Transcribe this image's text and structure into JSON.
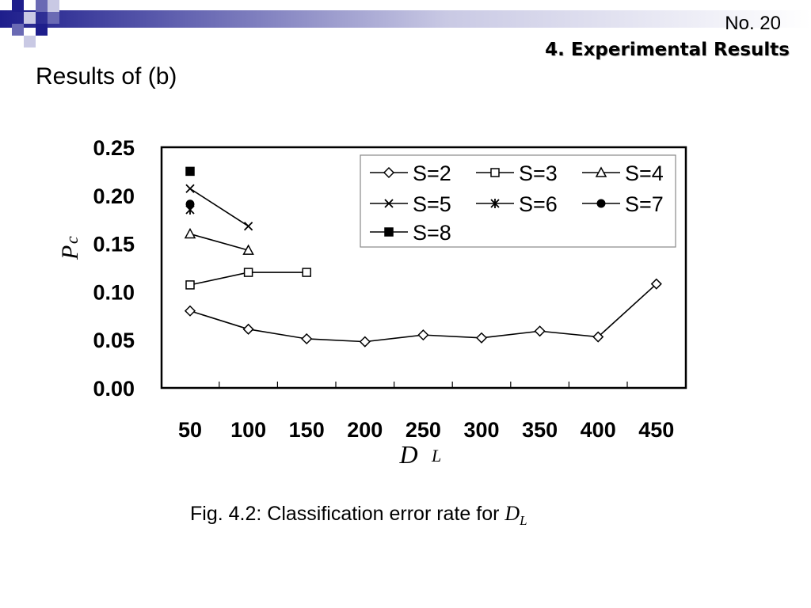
{
  "slide": {
    "number": "No. 20",
    "section": "4. Experimental Results",
    "title": "Results of (b)",
    "caption_prefix": "Fig. 4.2: Classification error rate for ",
    "caption_var": "D",
    "caption_sub": "L"
  },
  "colors": {
    "deco_dark": "#1e1e8c",
    "deco_mid": "#6a6ab4",
    "deco_light": "#c9c9e4"
  },
  "chart_data": {
    "type": "line",
    "xlabel": "D",
    "xlabel_sub": "L",
    "ylabel": "P",
    "ylabel_sub": "c",
    "x_ticks": [
      "50",
      "100",
      "150",
      "200",
      "250",
      "300",
      "350",
      "400",
      "450"
    ],
    "y_ticks": [
      "0.25",
      "0.20",
      "0.15",
      "0.10",
      "0.05",
      "0.00"
    ],
    "ylim": [
      0,
      0.25
    ],
    "legend_position": "top-right",
    "grid": false,
    "series": [
      {
        "name": "S=2",
        "marker": "diamond",
        "x": [
          50,
          100,
          150,
          200,
          250,
          300,
          350,
          400,
          450
        ],
        "y": [
          0.08,
          0.061,
          0.051,
          0.048,
          0.055,
          0.052,
          0.059,
          0.053,
          0.108
        ]
      },
      {
        "name": "S=3",
        "marker": "square-open",
        "x": [
          50,
          100,
          150
        ],
        "y": [
          0.107,
          0.12,
          0.12
        ]
      },
      {
        "name": "S=4",
        "marker": "triangle",
        "x": [
          50,
          100
        ],
        "y": [
          0.16,
          0.143
        ]
      },
      {
        "name": "S=5",
        "marker": "x",
        "x": [
          50,
          100
        ],
        "y": [
          0.207,
          0.168
        ]
      },
      {
        "name": "S=6",
        "marker": "star",
        "x": [
          50
        ],
        "y": [
          0.185
        ]
      },
      {
        "name": "S=7",
        "marker": "dot",
        "x": [
          50
        ],
        "y": [
          0.191
        ]
      },
      {
        "name": "S=8",
        "marker": "square-filled",
        "x": [
          50
        ],
        "y": [
          0.225
        ]
      }
    ]
  }
}
